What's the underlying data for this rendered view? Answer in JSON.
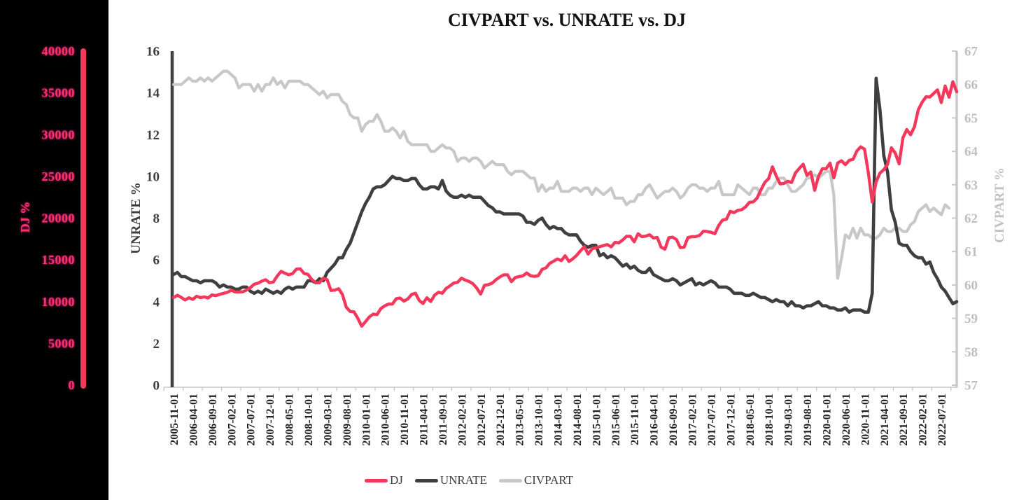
{
  "chart_data": {
    "type": "line",
    "title": "CIVPART vs. UNRATE vs. DJ",
    "legend_position": "bottom",
    "grid": false,
    "x_axis": {
      "tick_labels": [
        "2005-11-01",
        "2006-04-01",
        "2006-09-01",
        "2007-02-01",
        "2007-07-01",
        "2007-12-01",
        "2008-05-01",
        "2008-10-01",
        "2009-03-01",
        "2009-08-01",
        "2010-01-01",
        "2010-06-01",
        "2010-11-01",
        "2011-04-01",
        "2011-09-01",
        "2012-02-01",
        "2012-07-01",
        "2012-12-01",
        "2013-05-01",
        "2013-10-01",
        "2014-03-01",
        "2014-08-01",
        "2015-01-01",
        "2015-06-01",
        "2015-11-01",
        "2016-04-01",
        "2016-09-01",
        "2017-02-01",
        "2017-07-01",
        "2017-12-01",
        "2018-05-01",
        "2018-10-01",
        "2019-03-01",
        "2019-08-01",
        "2020-01-01",
        "2020-06-01",
        "2020-11-01",
        "2021-04-01",
        "2021-09-01",
        "2022-02-01",
        "2022-07-01"
      ]
    },
    "left_axis": {
      "title": "UNRATE %",
      "min": 0,
      "max": 16,
      "ticks": [
        0,
        2,
        4,
        6,
        8,
        10,
        12,
        14,
        16
      ]
    },
    "right_axis": {
      "title": "CIVPART %",
      "min": 57,
      "max": 67,
      "ticks": [
        57,
        58,
        59,
        60,
        61,
        62,
        63,
        64,
        65,
        66,
        67
      ]
    },
    "dj_axis": {
      "title": "DJ %",
      "min": 0,
      "max": 40000,
      "ticks": [
        0,
        5000,
        10000,
        15000,
        20000,
        25000,
        30000,
        35000,
        40000
      ]
    },
    "series": [
      {
        "name": "CIVPART",
        "axis": "right",
        "color": "#C8C8C8",
        "width": 4.2,
        "values": [
          66.0,
          66.0,
          66.0,
          66.1,
          66.2,
          66.1,
          66.1,
          66.2,
          66.1,
          66.2,
          66.1,
          66.2,
          66.3,
          66.4,
          66.4,
          66.3,
          66.2,
          65.9,
          66.0,
          66.0,
          66.0,
          65.8,
          66.0,
          65.8,
          66.0,
          66.0,
          66.2,
          66.0,
          66.1,
          65.9,
          66.1,
          66.1,
          66.1,
          66.1,
          66.0,
          66.0,
          65.9,
          65.8,
          65.7,
          65.8,
          65.6,
          65.7,
          65.7,
          65.7,
          65.5,
          65.4,
          65.1,
          65.0,
          65.0,
          64.6,
          64.8,
          64.9,
          64.9,
          65.1,
          64.9,
          64.6,
          64.6,
          64.7,
          64.6,
          64.4,
          64.6,
          64.3,
          64.2,
          64.2,
          64.2,
          64.2,
          64.2,
          64.0,
          64.0,
          64.1,
          64.2,
          64.1,
          64.1,
          64.0,
          63.7,
          63.8,
          63.8,
          63.7,
          63.8,
          63.8,
          63.7,
          63.5,
          63.6,
          63.7,
          63.6,
          63.6,
          63.6,
          63.4,
          63.3,
          63.4,
          63.4,
          63.4,
          63.3,
          63.2,
          63.2,
          62.8,
          63.0,
          62.8,
          62.9,
          62.9,
          63.1,
          62.8,
          62.8,
          62.8,
          62.9,
          62.9,
          62.8,
          62.9,
          62.9,
          62.7,
          62.9,
          62.8,
          62.7,
          62.8,
          62.9,
          62.6,
          62.6,
          62.6,
          62.4,
          62.5,
          62.5,
          62.7,
          62.7,
          62.9,
          63.0,
          62.8,
          62.6,
          62.7,
          62.8,
          62.8,
          62.9,
          62.8,
          62.6,
          62.7,
          62.9,
          63.0,
          63.0,
          62.9,
          62.9,
          62.8,
          62.9,
          62.9,
          63.1,
          62.7,
          62.7,
          62.7,
          62.7,
          63.0,
          62.9,
          62.8,
          62.7,
          62.9,
          62.9,
          62.7,
          62.7,
          62.9,
          62.9,
          63.1,
          63.2,
          63.2,
          63.0,
          62.8,
          62.8,
          62.9,
          63.0,
          63.2,
          63.2,
          63.3,
          63.2,
          63.3,
          63.4,
          63.4,
          62.7,
          60.2,
          60.8,
          61.5,
          61.4,
          61.7,
          61.4,
          61.7,
          61.5,
          61.5,
          61.4,
          61.4,
          61.5,
          61.7,
          61.6,
          61.6,
          61.7,
          61.7,
          61.6,
          61.6,
          61.8,
          61.9,
          62.2,
          62.3,
          62.4,
          62.2,
          62.3,
          62.2,
          62.1,
          62.4,
          62.3
        ]
      },
      {
        "name": "UNRATE",
        "axis": "left",
        "color": "#3F3F3F",
        "width": 4.6,
        "values": [
          5.3,
          5.4,
          5.2,
          5.2,
          5.1,
          5.0,
          5.0,
          4.9,
          5.0,
          5.0,
          5.0,
          4.9,
          4.7,
          4.8,
          4.7,
          4.7,
          4.6,
          4.6,
          4.7,
          4.7,
          4.5,
          4.4,
          4.5,
          4.4,
          4.6,
          4.5,
          4.4,
          4.5,
          4.4,
          4.6,
          4.7,
          4.6,
          4.7,
          4.7,
          4.7,
          5.0,
          5.0,
          4.9,
          5.1,
          5.0,
          5.4,
          5.6,
          5.8,
          6.1,
          6.1,
          6.5,
          6.8,
          7.3,
          7.8,
          8.3,
          8.7,
          9.0,
          9.4,
          9.5,
          9.5,
          9.6,
          9.8,
          10.0,
          9.9,
          9.9,
          9.8,
          9.8,
          9.9,
          9.9,
          9.6,
          9.4,
          9.4,
          9.5,
          9.5,
          9.4,
          9.8,
          9.3,
          9.1,
          9.0,
          9.0,
          9.1,
          9.0,
          9.1,
          9.0,
          9.0,
          9.0,
          8.8,
          8.6,
          8.5,
          8.3,
          8.3,
          8.2,
          8.2,
          8.2,
          8.2,
          8.2,
          8.1,
          7.8,
          7.8,
          7.7,
          7.9,
          8.0,
          7.7,
          7.5,
          7.6,
          7.5,
          7.5,
          7.3,
          7.2,
          7.2,
          7.2,
          6.9,
          6.7,
          6.6,
          6.7,
          6.7,
          6.2,
          6.3,
          6.1,
          6.2,
          6.1,
          5.9,
          5.7,
          5.8,
          5.6,
          5.7,
          5.5,
          5.4,
          5.4,
          5.6,
          5.3,
          5.2,
          5.1,
          5.0,
          5.0,
          5.1,
          5.0,
          4.8,
          4.9,
          5.0,
          5.1,
          4.8,
          4.9,
          4.8,
          4.9,
          5.0,
          4.9,
          4.7,
          4.7,
          4.7,
          4.6,
          4.4,
          4.4,
          4.4,
          4.3,
          4.3,
          4.4,
          4.3,
          4.2,
          4.2,
          4.1,
          4.0,
          4.1,
          4.0,
          4.0,
          3.8,
          4.0,
          3.8,
          3.8,
          3.7,
          3.8,
          3.8,
          3.9,
          4.0,
          3.8,
          3.8,
          3.7,
          3.7,
          3.6,
          3.6,
          3.7,
          3.5,
          3.6,
          3.6,
          3.6,
          3.5,
          3.5,
          4.4,
          14.7,
          13.2,
          11.0,
          10.2,
          8.4,
          7.8,
          6.8,
          6.7,
          6.7,
          6.4,
          6.2,
          6.1,
          6.1,
          5.8,
          5.9,
          5.4,
          5.1,
          4.7,
          4.5,
          4.2,
          3.9,
          4.0
        ]
      },
      {
        "name": "DJ",
        "axis": "dj",
        "color": "#F4385C",
        "width": 4.4,
        "values": [
          10490,
          10766,
          10504,
          10193,
          10467,
          10275,
          10641,
          10482,
          10569,
          10440,
          10806,
          10718,
          10865,
          10993,
          11109,
          11367,
          11168,
          11150,
          11186,
          11381,
          11679,
          12080,
          12222,
          12463,
          12622,
          12269,
          12354,
          13063,
          13628,
          13409,
          13212,
          13358,
          13896,
          13930,
          13372,
          13265,
          12650,
          12266,
          12263,
          12820,
          12638,
          11350,
          11378,
          11544,
          10851,
          9325,
          8829,
          8776,
          8001,
          7063,
          7609,
          8168,
          8500,
          8447,
          9172,
          9496,
          9712,
          9713,
          10345,
          10428,
          10067,
          10325,
          10857,
          11009,
          10137,
          9774,
          10466,
          10015,
          10788,
          11118,
          11006,
          11578,
          11892,
          12226,
          12320,
          12811,
          12570,
          12414,
          12143,
          11614,
          10913,
          11955,
          12046,
          12218,
          12633,
          12952,
          13212,
          13214,
          12393,
          12880,
          13009,
          13091,
          13437,
          13096,
          13026,
          13104,
          13861,
          14054,
          14579,
          14840,
          15116,
          14910,
          15500,
          14810,
          15130,
          15546,
          16086,
          16577,
          15699,
          16322,
          16458,
          16581,
          16717,
          16827,
          16563,
          17098,
          17043,
          17391,
          17828,
          17823,
          17165,
          18133,
          17776,
          17841,
          18011,
          17620,
          17690,
          16528,
          16285,
          17664,
          17720,
          17425,
          16466,
          16517,
          17685,
          17774,
          17787,
          17930,
          18432,
          18401,
          18308,
          18142,
          19124,
          19763,
          19864,
          20812,
          20663,
          20941,
          21009,
          21350,
          21891,
          21948,
          22405,
          23377,
          24272,
          24719,
          26149,
          25029,
          24103,
          24163,
          24416,
          24271,
          25415,
          25965,
          26458,
          25116,
          25538,
          23327,
          25000,
          25916,
          25929,
          26593,
          24815,
          26600,
          26864,
          26403,
          26917,
          27046,
          28051,
          28538,
          28256,
          25409,
          21917,
          24346,
          25383,
          25813,
          26428,
          28430,
          27782,
          26502,
          29639,
          30606,
          29983,
          30932,
          32982,
          33875,
          34529,
          34503,
          34935,
          35361,
          33844,
          35820,
          34484,
          36338,
          35132
        ]
      }
    ],
    "legend": [
      "DJ",
      "UNRATE",
      "CIVPART"
    ]
  },
  "colors": {
    "background": "#FFFFFF",
    "left_panel": "#000000",
    "dj_accent": "#F4385C",
    "unrate_dark": "#3F3F3F",
    "civpart_gray": "#C8C8C8",
    "right_axis_text": "#BFBFBF",
    "x_axis_line": "#C6C6C6",
    "x_label_text": "#1F1F1F"
  }
}
